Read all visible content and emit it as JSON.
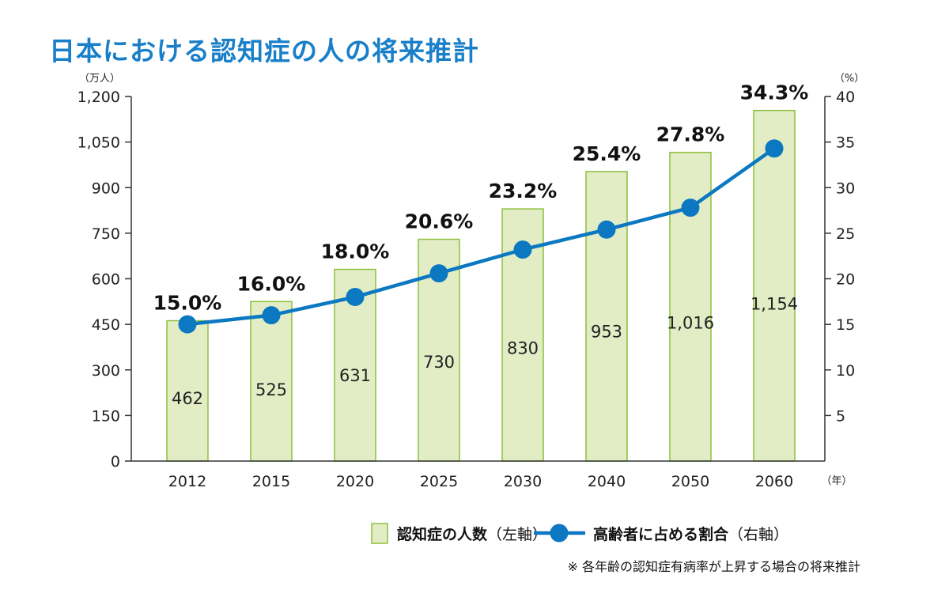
{
  "chart_data": {
    "type": "bar+line",
    "title": "日本における認知症の人の将来推計",
    "categories": [
      "2012",
      "2015",
      "2020",
      "2025",
      "2030",
      "2040",
      "2050",
      "2060"
    ],
    "x_unit": "（年）",
    "left_axis": {
      "unit": "（万人）",
      "ylim": [
        0,
        1200
      ],
      "ticks": [
        0,
        150,
        300,
        450,
        600,
        750,
        900,
        1050,
        1200
      ],
      "tick_labels": [
        "0",
        "150",
        "300",
        "450",
        "600",
        "750",
        "900",
        "1,050",
        "1,200"
      ]
    },
    "right_axis": {
      "unit": "（%）",
      "ylim": [
        0,
        40
      ],
      "ticks": [
        5,
        10,
        15,
        20,
        25,
        30,
        35,
        40
      ],
      "tick_labels": [
        "5",
        "10",
        "15",
        "20",
        "25",
        "30",
        "35",
        "40"
      ]
    },
    "series": [
      {
        "name": "認知症の人数（左軸）",
        "legend_main": "認知症の人数",
        "legend_sub": "（左軸）",
        "type": "bar",
        "axis": "left",
        "values": [
          462,
          525,
          631,
          730,
          830,
          953,
          1016,
          1154
        ],
        "labels": [
          "462",
          "525",
          "631",
          "730",
          "830",
          "953",
          "1,016",
          "1,154"
        ],
        "color": "#e2edc6",
        "stroke": "#8dbf3c"
      },
      {
        "name": "高齢者に占める割合（右軸）",
        "legend_main": "高齢者に占める割合",
        "legend_sub": "（右軸）",
        "type": "line",
        "axis": "right",
        "values": [
          15.0,
          16.0,
          18.0,
          20.6,
          23.2,
          25.4,
          27.8,
          34.3
        ],
        "labels": [
          "15.0%",
          "16.0%",
          "18.0%",
          "20.6%",
          "23.2%",
          "25.4%",
          "27.8%",
          "34.3%"
        ],
        "color": "#0b78c1"
      }
    ],
    "note": "※ 各年齢の認知症有病率が上昇する場合の将来推計",
    "grid": false,
    "legend_position": "bottom-right"
  }
}
